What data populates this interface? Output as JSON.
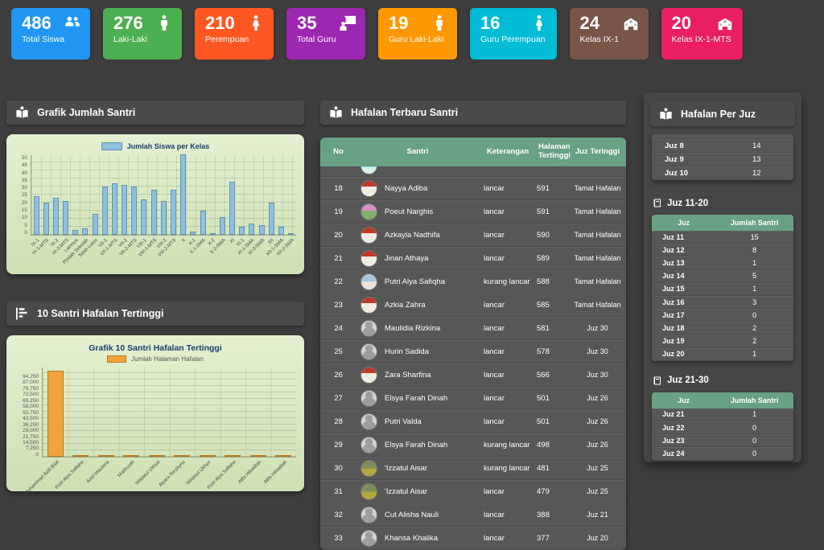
{
  "cards": [
    {
      "value": "486",
      "label": "Total Siswa",
      "color": "#2196F3",
      "icon": "users"
    },
    {
      "value": "276",
      "label": "Laki-Laki",
      "color": "#4CAF50",
      "icon": "male"
    },
    {
      "value": "210",
      "label": "Perempuan",
      "color": "#FF5722",
      "icon": "female"
    },
    {
      "value": "35",
      "label": "Total Guru",
      "color": "#9C27B0",
      "icon": "teacher"
    },
    {
      "value": "19",
      "label": "Guru Laki-Laki",
      "color": "#FF9800",
      "icon": "male"
    },
    {
      "value": "16",
      "label": "Guru Perempuan",
      "color": "#00BCD4",
      "icon": "female"
    },
    {
      "value": "24",
      "label": "Kelas IX-1",
      "color": "#795548",
      "icon": "school"
    },
    {
      "value": "20",
      "label": "Kelas IX-1-MTS",
      "color": "#E91E63",
      "icon": "school"
    }
  ],
  "panels": {
    "left1": "Grafik Jumlah Santri",
    "left2": "10 Santri Hafalan Tertinggi",
    "mid": "Hafalan Terbaru Santri",
    "right": "Hafalan Per Juz"
  },
  "chart_data": [
    {
      "type": "bar",
      "title": "",
      "legend": "Jumlah Siswa per Kelas",
      "categories": [
        "IX-1",
        "IX-1-MTS",
        "IX-2",
        "IX-2-MTS",
        "Lainnya",
        "Pindah Sekolah",
        "Telah Lulus",
        "VII-1",
        "VII-1-MTS",
        "VII-2",
        "VII-2-MTS",
        "VIII-1",
        "VIII-1-MTS",
        "VIII-2",
        "VIII-2-MTS",
        "X",
        "X-1",
        "X-1-SMA",
        "X-2",
        "X-2-SMA",
        "XI",
        "XI-1",
        "XI-1-SMA",
        "XI-3-SMA",
        "XII",
        "XII-1-SMA",
        "XII-2-SMA"
      ],
      "values": [
        24,
        20,
        23,
        21,
        3,
        4,
        13,
        30,
        32,
        31,
        30,
        22,
        28,
        21,
        28,
        50,
        2,
        15,
        1,
        11,
        33,
        5,
        7,
        6,
        20,
        5,
        1
      ],
      "xlabel": "",
      "ylabel": "",
      "ylim": [
        0,
        50
      ],
      "yticks": [
        "50",
        "45",
        "40",
        "35",
        "30",
        "25",
        "20",
        "15",
        "10",
        "5",
        "0"
      ],
      "grid": true,
      "legend_position": "top"
    },
    {
      "type": "bar",
      "title": "Grafik 10 Santri Hafalan Tertinggi",
      "legend": "Jumlah Halaman Hafalan",
      "categories": [
        "Muhammad Aidil Bilal",
        "Putri Alya Safiqha",
        "Arief Maulana",
        "Mahfuzah",
        "Wildatul Ukhya",
        "Alyara Riezkyna",
        "Wildatul Ukhya",
        "Putri Alya Safiqha",
        "Alifa Hibatillah",
        "Alifa Hibatillah"
      ],
      "values": [
        97000,
        600,
        600,
        600,
        600,
        600,
        600,
        600,
        600,
        600
      ],
      "xlabel": "",
      "ylabel": "",
      "ylim": [
        0,
        101500
      ],
      "yticks": [
        "94,250",
        "87,000",
        "79,750",
        "72,500",
        "65,250",
        "58,000",
        "50,750",
        "43,500",
        "36,250",
        "29,000",
        "21,750",
        "14,500",
        "7,250",
        "0"
      ],
      "grid": true,
      "legend_position": "top"
    }
  ],
  "hafalan_table": {
    "columns": [
      "No",
      "Santri",
      "Keterangan",
      "Halaman Tertinggi",
      "Juz Teringgi"
    ],
    "rows": [
      {
        "no": "18",
        "name": "Nayya Adiba",
        "ket": "lancar",
        "hal": "591",
        "juz": "Tamat Hafalan",
        "avatar": "red"
      },
      {
        "no": "19",
        "name": "Poeut Narghis",
        "ket": "lancar",
        "hal": "591",
        "juz": "Tamat Hafalan",
        "avatar": "pink"
      },
      {
        "no": "20",
        "name": "Azkayla Nadhifa",
        "ket": "lancar",
        "hal": "590",
        "juz": "Tamat Hafalan",
        "avatar": "red"
      },
      {
        "no": "21",
        "name": "Jinan Athaya",
        "ket": "lancar",
        "hal": "589",
        "juz": "Tamat Hafalan",
        "avatar": "red"
      },
      {
        "no": "22",
        "name": "Putri Alya Safiqha",
        "ket": "kurang lancar",
        "hal": "588",
        "juz": "Tamat Hafalan",
        "avatar": "blue"
      },
      {
        "no": "23",
        "name": "Azkia Zahra",
        "ket": "lancar",
        "hal": "585",
        "juz": "Tamat Hafalan",
        "avatar": "red"
      },
      {
        "no": "24",
        "name": "Maulidia Rizkina",
        "ket": "lancar",
        "hal": "581",
        "juz": "Juz 30",
        "avatar": "ph"
      },
      {
        "no": "25",
        "name": "Hurin Sadida",
        "ket": "lancar",
        "hal": "578",
        "juz": "Juz 30",
        "avatar": "ph"
      },
      {
        "no": "26",
        "name": "Zara Sharfina",
        "ket": "lancar",
        "hal": "566",
        "juz": "Juz 30",
        "avatar": "red"
      },
      {
        "no": "27",
        "name": "Elsya Farah Dinah",
        "ket": "lancar",
        "hal": "501",
        "juz": "Juz 26",
        "avatar": "ph"
      },
      {
        "no": "28",
        "name": "Putri Valda",
        "ket": "lancar",
        "hal": "501",
        "juz": "Juz 26",
        "avatar": "ph"
      },
      {
        "no": "29",
        "name": "Elsya Farah Dinah",
        "ket": "kurang lancar",
        "hal": "498",
        "juz": "Juz 26",
        "avatar": "ph"
      },
      {
        "no": "30",
        "name": "'Izzatul Aisar",
        "ket": "kurang lancar",
        "hal": "481",
        "juz": "Juz 25",
        "avatar": "green"
      },
      {
        "no": "31",
        "name": "'Izzatul Aisar",
        "ket": "lancar",
        "hal": "479",
        "juz": "Juz 25",
        "avatar": "green"
      },
      {
        "no": "32",
        "name": "Cut Alisha Nauli",
        "ket": "lancar",
        "hal": "388",
        "juz": "Juz 21",
        "avatar": "ph"
      },
      {
        "no": "33",
        "name": "Khansa Khalika",
        "ket": "lancar",
        "hal": "377",
        "juz": "Juz 20",
        "avatar": "ph"
      }
    ]
  },
  "per_juz": {
    "top_rows": [
      [
        "Juz 8",
        "14"
      ],
      [
        "Juz 9",
        "13"
      ],
      [
        "Juz 10",
        "12"
      ]
    ],
    "sections": [
      {
        "label": "Juz 11-20",
        "columns": [
          "Juz",
          "Jumlah Santri"
        ],
        "rows": [
          [
            "Juz 11",
            "15"
          ],
          [
            "Juz 12",
            "8"
          ],
          [
            "Juz 13",
            "1"
          ],
          [
            "Juz 14",
            "5"
          ],
          [
            "Juz 15",
            "1"
          ],
          [
            "Juz 16",
            "3"
          ],
          [
            "Juz 17",
            "0"
          ],
          [
            "Juz 18",
            "2"
          ],
          [
            "Juz 19",
            "2"
          ],
          [
            "Juz 20",
            "1"
          ]
        ]
      },
      {
        "label": "Juz 21-30",
        "columns": [
          "Juz",
          "Jumlah Santri"
        ],
        "rows": [
          [
            "Juz 21",
            "1"
          ],
          [
            "Juz 22",
            "0"
          ],
          [
            "Juz 23",
            "0"
          ],
          [
            "Juz 24",
            "0"
          ]
        ]
      }
    ]
  }
}
